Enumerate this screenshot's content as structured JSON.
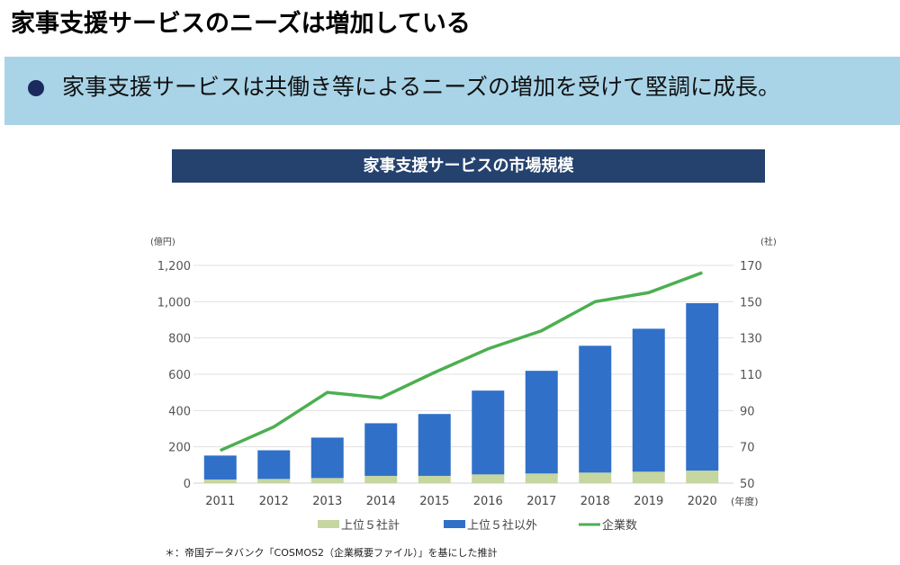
{
  "header": {
    "title": "家事支援サービスのニーズは増加している"
  },
  "banner": {
    "text": "家事支援サービスは共働き等によるニーズの増加を受けて堅調に成長。"
  },
  "chart_data": {
    "type": "bar",
    "stacked": true,
    "title": "家事支援サービスの市場規模",
    "categories": [
      "2011",
      "2012",
      "2013",
      "2014",
      "2015",
      "2016",
      "2017",
      "2018",
      "2019",
      "2020"
    ],
    "x_unit": "(年度)",
    "y_unit": "(億円)",
    "y2_unit": "(社)",
    "ylim": [
      0,
      1200
    ],
    "yticks": [
      "0",
      "200",
      "400",
      "600",
      "800",
      "1,000",
      "1,200"
    ],
    "y2lim": [
      50,
      170
    ],
    "y2ticks": [
      "50",
      "70",
      "90",
      "110",
      "130",
      "150",
      "170"
    ],
    "grid": true,
    "legend_placement": "bottom",
    "series": [
      {
        "name": "上位５社計",
        "type": "bar",
        "color": "#c5d6a0",
        "values": [
          20,
          23,
          28,
          40,
          40,
          48,
          53,
          58,
          63,
          69
        ]
      },
      {
        "name": "上位５社以外",
        "type": "bar",
        "color": "#3070c8",
        "values": [
          132,
          158,
          223,
          290,
          341,
          462,
          566,
          699,
          788,
          923
        ]
      },
      {
        "name": "企業数",
        "type": "line",
        "axis": "right",
        "color": "#4caf50",
        "values": [
          68,
          81,
          100,
          97,
          111,
          124,
          134,
          150,
          155,
          166
        ]
      }
    ]
  },
  "footnote": "＊：帝国データバンク「COSMOS2（企業概要ファイル）」を基にした推計"
}
